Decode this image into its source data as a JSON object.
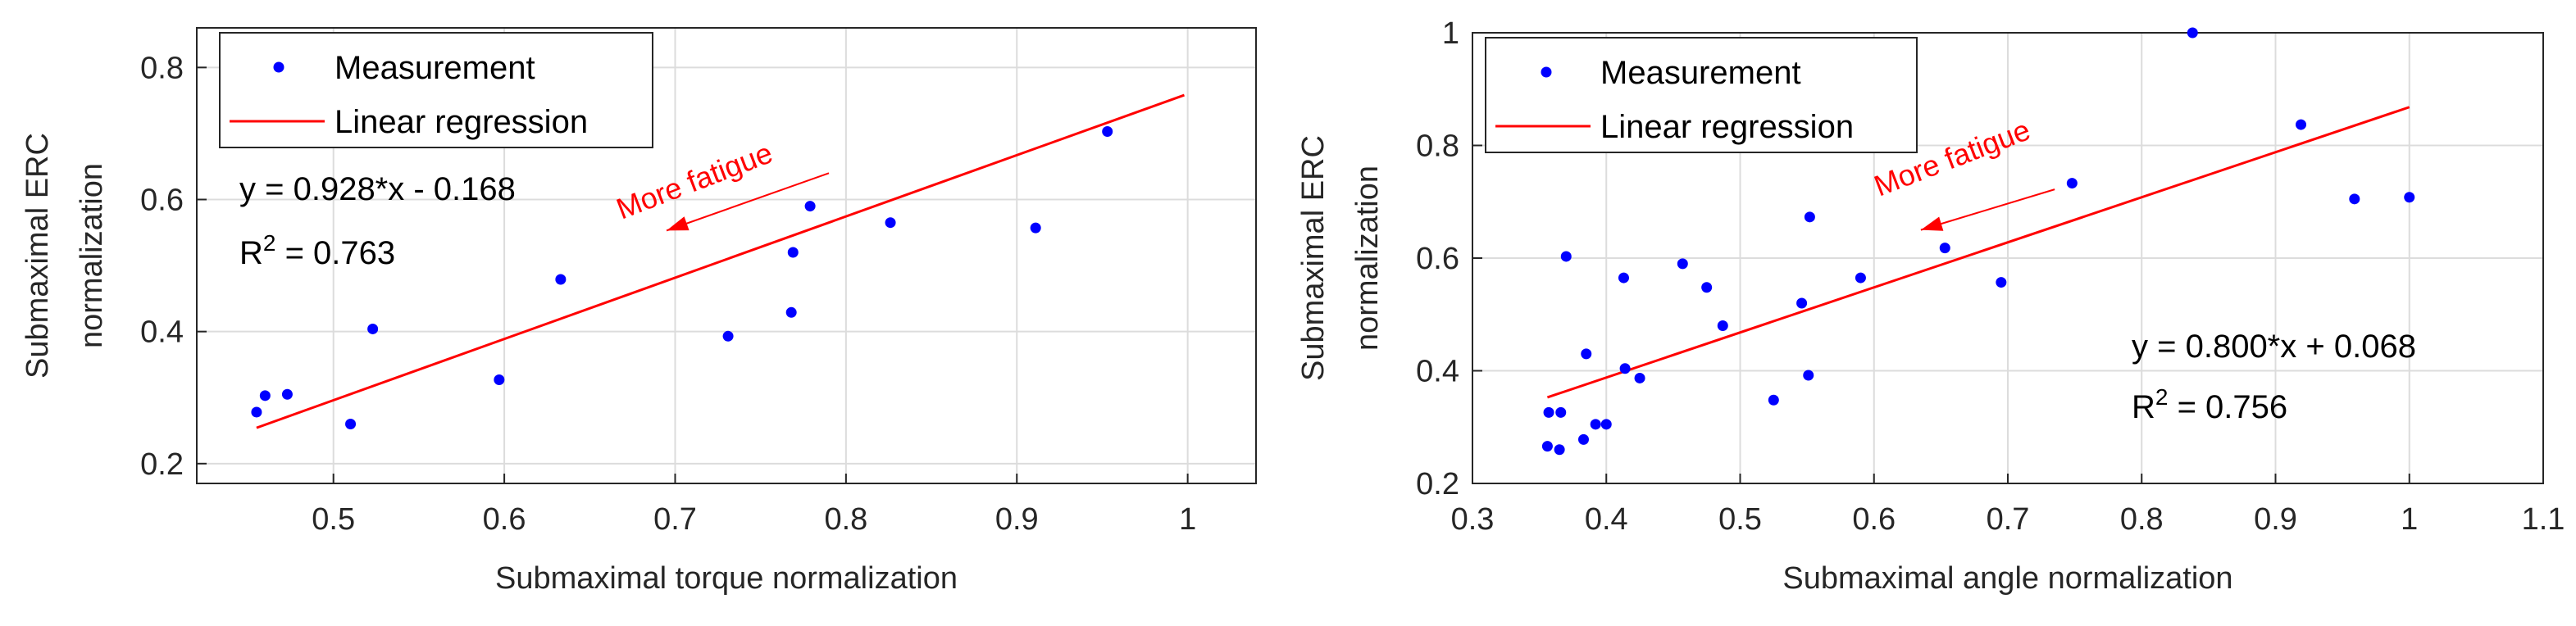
{
  "colors": {
    "points": "#0000FF",
    "regression": "#FF0000",
    "annotation": "#FF0000",
    "grid": "#DCDCDC",
    "axis": "#262626"
  },
  "icons": {
    "measurement_marker": "blue-dot-icon",
    "regression_marker": "red-line-icon",
    "fatigue_arrow": "arrow-left-icon"
  },
  "chart_data": [
    {
      "type": "scatter",
      "title": "",
      "xlabel": "Submaximal torque normalization",
      "ylabel_line1": "Submaximal ERC",
      "ylabel_line2": "normalization",
      "xlim": [
        0.42,
        1.04
      ],
      "ylim": [
        0.17,
        0.86
      ],
      "xticks": [
        0.5,
        0.6,
        0.7,
        0.8,
        0.9,
        1
      ],
      "xtick_labels": [
        "0.5",
        "0.6",
        "0.7",
        "0.8",
        "0.9",
        "1"
      ],
      "yticks": [
        0.2,
        0.4,
        0.6,
        0.8
      ],
      "ytick_labels": [
        "0.2",
        "0.4",
        "0.6",
        "0.8"
      ],
      "grid": true,
      "legend": {
        "location": "top-left",
        "entries": [
          "Measurement",
          "Linear regression"
        ]
      },
      "series": [
        {
          "name": "Measurement",
          "x": [
            0.455,
            0.46,
            0.473,
            0.51,
            0.523,
            0.597,
            0.633,
            0.731,
            0.768,
            0.769,
            0.779,
            0.826,
            0.911,
            0.953
          ],
          "y": [
            0.278,
            0.303,
            0.305,
            0.26,
            0.404,
            0.327,
            0.479,
            0.393,
            0.429,
            0.52,
            0.59,
            0.565,
            0.557,
            0.703
          ]
        }
      ],
      "regression": {
        "name": "Linear regression",
        "slope": 0.928,
        "intercept": -0.168,
        "x_range": [
          0.455,
          0.998
        ]
      },
      "equation_text": "y = 0.928*x - 0.168",
      "r2_label": "R",
      "r2_sup": "2",
      "r2_value": " = 0.763",
      "annotation": {
        "text": "More fatigue",
        "arrow_from": [
          0.79,
          0.64
        ],
        "arrow_to": [
          0.695,
          0.553
        ]
      }
    },
    {
      "type": "scatter",
      "title": "",
      "xlabel": "Submaximal angle normalization",
      "ylabel_line1": "Submaximal ERC",
      "ylabel_line2": "normalization",
      "xlim": [
        0.3,
        1.1
      ],
      "ylim": [
        0.2,
        1.0
      ],
      "xticks": [
        0.3,
        0.4,
        0.5,
        0.6,
        0.7,
        0.8,
        0.9,
        1,
        1.1
      ],
      "xtick_labels": [
        "0.3",
        "0.4",
        "0.5",
        "0.6",
        "0.7",
        "0.8",
        "0.9",
        "1",
        "1.1"
      ],
      "yticks": [
        0.2,
        0.4,
        0.6,
        0.8,
        1.0
      ],
      "ytick_labels": [
        "0.2",
        "0.4",
        "0.6",
        "0.8",
        "1"
      ],
      "grid": true,
      "legend": {
        "location": "top-left",
        "entries": [
          "Measurement",
          "Linear regression"
        ]
      },
      "series": [
        {
          "name": "Measurement",
          "x": [
            0.356,
            0.357,
            0.365,
            0.366,
            0.37,
            0.383,
            0.385,
            0.392,
            0.4,
            0.413,
            0.414,
            0.425,
            0.457,
            0.475,
            0.487,
            0.525,
            0.546,
            0.551,
            0.552,
            0.59,
            0.653,
            0.695,
            0.748,
            0.838,
            0.919,
            0.959,
            1.0
          ],
          "y": [
            0.266,
            0.326,
            0.26,
            0.326,
            0.603,
            0.278,
            0.43,
            0.305,
            0.305,
            0.565,
            0.404,
            0.387,
            0.59,
            0.548,
            0.48,
            0.348,
            0.52,
            0.392,
            0.673,
            0.565,
            0.618,
            0.557,
            0.733,
            1.0,
            0.837,
            0.705,
            0.708
          ]
        }
      ],
      "regression": {
        "name": "Linear regression",
        "slope": 0.8,
        "intercept": 0.068,
        "x_range": [
          0.356,
          1.0
        ]
      },
      "equation_text": "y = 0.800*x + 0.068",
      "r2_label": "R",
      "r2_sup": "2",
      "r2_value": " = 0.756",
      "annotation": {
        "text": "More fatigue",
        "arrow_from": [
          0.735,
          0.722
        ],
        "arrow_to": [
          0.635,
          0.65
        ]
      }
    }
  ]
}
